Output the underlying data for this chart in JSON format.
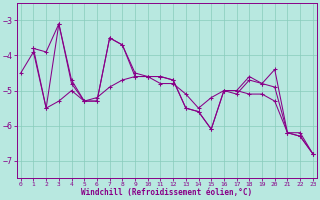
{
  "xlabel": "Windchill (Refroidissement éolien,°C)",
  "line_color": "#880088",
  "bg_color": "#b8e8e0",
  "grid_color": "#88ccbb",
  "xlim_min": -0.3,
  "xlim_max": 23.3,
  "ylim_min": -7.5,
  "ylim_max": -2.5,
  "yticks": [
    -7,
    -6,
    -5,
    -4,
    -3
  ],
  "xticks": [
    0,
    1,
    2,
    3,
    4,
    5,
    6,
    7,
    8,
    9,
    10,
    11,
    12,
    13,
    14,
    15,
    16,
    17,
    18,
    19,
    20,
    21,
    22,
    23
  ],
  "series": [
    [
      -4.5,
      -3.9,
      -5.5,
      -3.1,
      -4.8,
      -5.3,
      -5.3,
      -3.5,
      -3.7,
      -4.5,
      -4.6,
      -4.6,
      -4.7,
      -5.5,
      -5.6,
      -6.1,
      -5.0,
      -5.0,
      -4.6,
      -4.8,
      -4.4,
      -6.2,
      -6.3,
      -6.8
    ],
    [
      null,
      -3.8,
      -3.9,
      -3.1,
      -4.7,
      -5.3,
      -5.3,
      -3.5,
      -3.7,
      -4.6,
      -4.6,
      -4.6,
      -4.7,
      -5.5,
      -5.6,
      -6.1,
      -5.0,
      -5.1,
      -4.7,
      -4.8,
      -4.9,
      -6.2,
      -6.2,
      -6.8
    ],
    [
      null,
      -3.8,
      -5.5,
      -5.3,
      -5.0,
      -5.3,
      -5.2,
      -4.9,
      -4.7,
      -4.6,
      -4.6,
      -4.8,
      -4.8,
      -5.1,
      -5.5,
      -5.2,
      -5.0,
      -5.0,
      -5.1,
      -5.1,
      -5.3,
      -6.2,
      -6.3,
      -6.8
    ]
  ]
}
